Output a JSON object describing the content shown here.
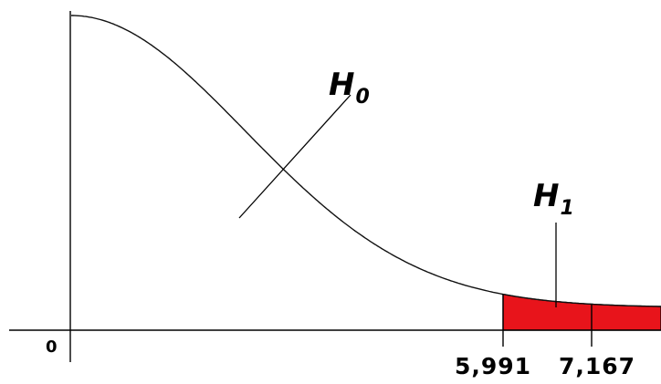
{
  "diagram": {
    "origin_label": "0",
    "critical_value_label": "5,991",
    "test_statistic_label": "7,167",
    "h0": {
      "letter": "H",
      "subscript": "0"
    },
    "h1": {
      "letter": "H",
      "subscript": "1"
    },
    "colors": {
      "rejection_region": "#e8141b",
      "curve": "#111111",
      "axes": "#000000"
    }
  }
}
